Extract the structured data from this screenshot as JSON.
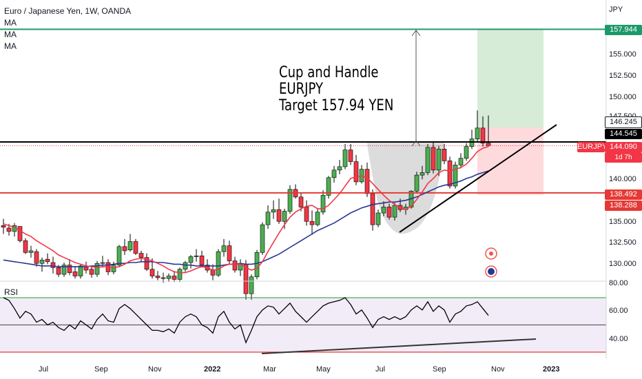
{
  "legend": {
    "symbol_title": "Euro / Japanese Yen, 1W, OANDA",
    "indicators": [
      "MA",
      "MA",
      "MA"
    ],
    "rsi_label": "RSI"
  },
  "annotation": {
    "line1": "Cup and Handle",
    "line2": "EURJPY",
    "line3": "Target 157.94 YEN"
  },
  "price_axis": {
    "currency": "JPY",
    "labels": [
      "155.000",
      "152.500",
      "150.000",
      "147.500",
      "140.000",
      "135.000",
      "132.500",
      "130.000"
    ],
    "tags": {
      "target": "157.944",
      "high": "146.245",
      "resistance": "144.545",
      "symbol": "EURJPY",
      "last": "144.090",
      "countdown": "1d 7h",
      "support": "138.492",
      "low": "138.288"
    }
  },
  "rsi_axis": {
    "labels": [
      "80.00",
      "60.00",
      "40.00"
    ]
  },
  "time_axis": {
    "labels": [
      "Jul",
      "Sep",
      "Nov",
      "2022",
      "Mar",
      "May",
      "Jul",
      "Sep",
      "Nov",
      "2023"
    ]
  },
  "colors": {
    "up": "#26a69a",
    "down": "#ef5350",
    "upBody": "#4caf50",
    "downBody": "#f23645",
    "target": "#1e9a6a",
    "support": "#e53935",
    "ma_fast": "#f23645",
    "ma_slow": "#283593",
    "rsi": "#000000"
  },
  "chart_data": {
    "type": "candlestick",
    "title": "Euro / Japanese Yen, 1W, OANDA",
    "series": [
      {
        "name": "EURJPY",
        "ohlc": [
          [
            134.6,
            135.4,
            133.6,
            134.4
          ],
          [
            134.3,
            134.8,
            133.4,
            133.9
          ],
          [
            133.9,
            134.9,
            133.3,
            134.6
          ],
          [
            134.5,
            134.5,
            132.6,
            132.8
          ],
          [
            132.8,
            133.1,
            131.2,
            131.4
          ],
          [
            131.4,
            132.2,
            130.8,
            131.6
          ],
          [
            131.5,
            131.8,
            129.7,
            130.1
          ],
          [
            130.1,
            130.8,
            129.1,
            130.5
          ],
          [
            130.6,
            131.3,
            130.0,
            130.3
          ],
          [
            130.2,
            130.9,
            128.9,
            129.6
          ],
          [
            129.6,
            129.9,
            128.5,
            128.8
          ],
          [
            128.8,
            130.2,
            128.5,
            129.9
          ],
          [
            129.9,
            130.6,
            128.7,
            129.0
          ],
          [
            129.1,
            129.8,
            128.3,
            128.6
          ],
          [
            128.6,
            130.0,
            128.3,
            129.8
          ],
          [
            129.7,
            130.3,
            128.9,
            129.3
          ],
          [
            129.4,
            129.8,
            128.4,
            128.8
          ],
          [
            128.8,
            130.4,
            128.5,
            130.1
          ],
          [
            130.1,
            131.0,
            129.6,
            130.2
          ],
          [
            130.2,
            130.6,
            128.7,
            129.1
          ],
          [
            129.1,
            130.3,
            128.8,
            129.9
          ],
          [
            129.9,
            132.3,
            129.7,
            132.1
          ],
          [
            132.1,
            133.0,
            131.1,
            131.6
          ],
          [
            131.7,
            133.6,
            131.5,
            132.7
          ],
          [
            132.7,
            133.0,
            131.1,
            131.3
          ],
          [
            131.3,
            131.6,
            130.3,
            130.8
          ],
          [
            130.8,
            131.3,
            129.2,
            129.4
          ],
          [
            129.4,
            130.7,
            128.3,
            128.6
          ],
          [
            128.6,
            129.2,
            128.1,
            128.4
          ],
          [
            128.4,
            129.0,
            127.8,
            128.3
          ],
          [
            128.3,
            128.9,
            127.9,
            128.6
          ],
          [
            128.6,
            129.2,
            127.9,
            128.2
          ],
          [
            128.2,
            129.6,
            127.9,
            129.4
          ],
          [
            129.4,
            130.4,
            129.1,
            130.2
          ],
          [
            130.2,
            131.1,
            129.5,
            130.9
          ],
          [
            130.9,
            131.8,
            130.3,
            131.0
          ],
          [
            131.0,
            131.6,
            129.7,
            129.9
          ],
          [
            129.9,
            130.6,
            129.0,
            129.3
          ],
          [
            129.3,
            130.0,
            128.1,
            128.7
          ],
          [
            128.7,
            131.8,
            128.5,
            131.5
          ],
          [
            131.5,
            133.0,
            130.9,
            132.2
          ],
          [
            132.2,
            132.8,
            130.0,
            130.4
          ],
          [
            130.4,
            130.9,
            129.0,
            129.3
          ],
          [
            129.3,
            130.6,
            128.6,
            130.0
          ],
          [
            130.0,
            130.5,
            125.8,
            126.5
          ],
          [
            126.5,
            128.8,
            125.8,
            128.5
          ],
          [
            128.5,
            131.7,
            128.2,
            131.4
          ],
          [
            131.4,
            135.0,
            131.1,
            134.7
          ],
          [
            134.7,
            137.0,
            134.2,
            136.2
          ],
          [
            136.2,
            137.6,
            135.4,
            136.5
          ],
          [
            136.5,
            137.8,
            134.8,
            135.1
          ],
          [
            135.1,
            136.6,
            134.2,
            136.3
          ],
          [
            136.3,
            139.4,
            136.0,
            138.9
          ],
          [
            138.9,
            139.5,
            137.8,
            138.0
          ],
          [
            138.0,
            138.5,
            136.3,
            136.8
          ],
          [
            136.8,
            137.6,
            134.6,
            135.1
          ],
          [
            135.1,
            136.4,
            133.5,
            134.7
          ],
          [
            134.7,
            136.6,
            134.5,
            136.2
          ],
          [
            136.2,
            138.8,
            135.9,
            138.2
          ],
          [
            138.2,
            140.5,
            137.8,
            140.3
          ],
          [
            140.3,
            141.7,
            139.7,
            141.2
          ],
          [
            141.2,
            142.4,
            140.7,
            141.6
          ],
          [
            141.6,
            144.3,
            141.3,
            143.6
          ],
          [
            143.6,
            144.3,
            141.8,
            142.2
          ],
          [
            142.2,
            143.0,
            139.4,
            139.8
          ],
          [
            139.8,
            141.8,
            139.6,
            141.3
          ],
          [
            141.3,
            142.1,
            138.0,
            138.4
          ],
          [
            138.4,
            138.9,
            134.0,
            134.7
          ],
          [
            134.7,
            136.5,
            134.4,
            136.1
          ],
          [
            136.1,
            137.5,
            135.7,
            136.8
          ],
          [
            136.8,
            137.2,
            135.3,
            135.6
          ],
          [
            135.6,
            137.3,
            135.2,
            137.0
          ],
          [
            137.0,
            137.8,
            136.2,
            136.5
          ],
          [
            136.5,
            137.2,
            135.9,
            136.8
          ],
          [
            136.8,
            138.8,
            136.6,
            138.7
          ],
          [
            138.7,
            141.0,
            138.4,
            140.6
          ],
          [
            140.6,
            141.7,
            140.1,
            140.9
          ],
          [
            140.9,
            144.3,
            140.6,
            143.9
          ],
          [
            143.9,
            144.6,
            140.8,
            141.2
          ],
          [
            141.2,
            144.1,
            140.5,
            143.7
          ],
          [
            143.7,
            144.3,
            141.9,
            142.3
          ],
          [
            142.3,
            142.8,
            139.0,
            139.3
          ],
          [
            139.3,
            142.2,
            139.0,
            141.8
          ],
          [
            141.8,
            143.2,
            141.4,
            142.6
          ],
          [
            142.6,
            144.4,
            142.3,
            144.0
          ],
          [
            144.0,
            146.0,
            143.7,
            144.9
          ],
          [
            144.9,
            148.3,
            144.6,
            146.2
          ],
          [
            146.2,
            147.6,
            144.0,
            144.4
          ],
          [
            144.4,
            147.7,
            144.0,
            144.1
          ]
        ]
      }
    ],
    "ma_fast": [
      134.8,
      134.6,
      134.4,
      134.0,
      133.6,
      133.3,
      132.8,
      132.4,
      132.0,
      131.6,
      131.1,
      130.8,
      130.5,
      130.2,
      130.0,
      129.8,
      129.7,
      129.6,
      129.7,
      129.7,
      129.6,
      129.7,
      130.0,
      130.4,
      130.6,
      130.7,
      130.6,
      130.4,
      130.1,
      129.8,
      129.4,
      129.1,
      129.0,
      129.0,
      129.2,
      129.5,
      129.7,
      129.6,
      129.3,
      129.4,
      129.8,
      130.0,
      130.0,
      130.0,
      129.6,
      129.3,
      129.5,
      130.3,
      131.5,
      132.6,
      133.7,
      134.7,
      135.6,
      136.2,
      136.6,
      136.9,
      137.0,
      136.6,
      136.6,
      137.0,
      137.7,
      138.4,
      139.3,
      140.2,
      140.4,
      140.5,
      140.3,
      139.6,
      138.9,
      138.2,
      137.6,
      137.1,
      136.7,
      136.5,
      136.9,
      137.7,
      138.6,
      139.6,
      140.2,
      140.9,
      141.2,
      141.1,
      141.3,
      141.5,
      141.9,
      142.6,
      143.4,
      143.8,
      144.0
    ],
    "ma_slow": [
      130.5,
      130.4,
      130.3,
      130.2,
      130.1,
      130.0,
      129.9,
      129.8,
      129.8,
      129.8,
      129.7,
      129.7,
      129.7,
      129.7,
      129.7,
      129.7,
      129.8,
      129.8,
      129.9,
      129.9,
      130.0,
      130.1,
      130.1,
      130.2,
      130.2,
      130.3,
      130.3,
      130.3,
      130.2,
      130.2,
      130.1,
      130.0,
      130.0,
      129.9,
      129.9,
      129.8,
      129.8,
      129.8,
      129.8,
      129.8,
      129.9,
      130.0,
      130.0,
      130.1,
      130.0,
      130.0,
      130.1,
      130.3,
      130.6,
      130.9,
      131.2,
      131.6,
      132.0,
      132.4,
      132.8,
      133.2,
      133.6,
      134.0,
      134.3,
      134.6,
      134.9,
      135.3,
      135.7,
      136.1,
      136.4,
      136.7,
      136.9,
      137.1,
      137.2,
      137.3,
      137.4,
      137.4,
      137.5,
      137.6,
      137.8,
      138.0,
      138.3,
      138.6,
      138.9,
      139.2,
      139.4,
      139.5,
      139.7,
      139.9,
      140.2,
      140.4,
      140.7,
      140.9,
      141.1
    ],
    "rsi": [
      70,
      68,
      62,
      55,
      60,
      58,
      52,
      54,
      50,
      52,
      48,
      46,
      50,
      47,
      53,
      50,
      47,
      54,
      58,
      53,
      52,
      62,
      65,
      62,
      58,
      54,
      50,
      46,
      46,
      45,
      47,
      44,
      52,
      56,
      58,
      56,
      50,
      48,
      44,
      56,
      60,
      52,
      47,
      50,
      37,
      46,
      56,
      61,
      64,
      63,
      58,
      62,
      66,
      60,
      56,
      52,
      56,
      60,
      64,
      66,
      67,
      68,
      70,
      65,
      58,
      61,
      55,
      48,
      54,
      56,
      54,
      56,
      54,
      56,
      61,
      64,
      61,
      67,
      60,
      64,
      61,
      52,
      58,
      60,
      64,
      65,
      67,
      62,
      57
    ],
    "ylim": [
      128,
      160
    ],
    "rsi_levels": [
      70,
      50,
      30
    ],
    "rsi_ylim": [
      30,
      80
    ]
  }
}
